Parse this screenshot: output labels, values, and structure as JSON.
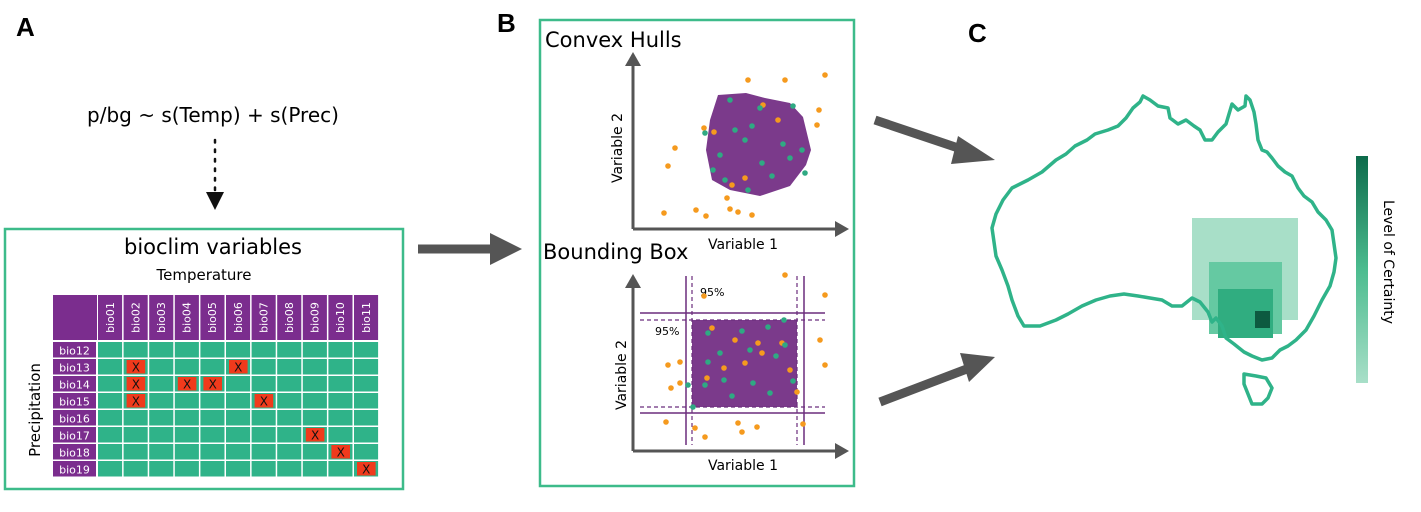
{
  "panels": {
    "a": {
      "letter": "A",
      "formula": "p/bg ~ s(Temp) + s(Prec)",
      "box_title": "bioclim variables",
      "col_axis_label": "Temperature",
      "row_axis_label": "Precipitation",
      "columns": [
        "bio01",
        "bio02",
        "bio03",
        "bio04",
        "bio05",
        "bio06",
        "bio07",
        "bio08",
        "bio09",
        "bio10",
        "bio11"
      ],
      "rows": [
        "bio12",
        "bio13",
        "bio14",
        "bio15",
        "bio16",
        "bio17",
        "bio18",
        "bio19"
      ],
      "excluded_cells": [
        [
          1,
          1
        ],
        [
          1,
          5
        ],
        [
          2,
          1
        ],
        [
          2,
          3
        ],
        [
          2,
          4
        ],
        [
          3,
          1
        ],
        [
          3,
          6
        ],
        [
          5,
          8
        ],
        [
          6,
          9
        ],
        [
          7,
          10
        ]
      ],
      "excluded_mark": "X",
      "colors": {
        "header": "#7b2d8e",
        "cell": "#2fb389",
        "excluded": "#f03a1c",
        "frame": "#3dbb8a"
      }
    },
    "b": {
      "letter": "B",
      "top_title": "Convex Hulls",
      "bottom_title": "Bounding Box",
      "xlabel": "Variable 1",
      "ylabel": "Variable 2",
      "percent_top": "95%",
      "percent_left": "95%",
      "colors": {
        "hull": "#7b3a8b",
        "presence": "#2fa983",
        "background": "#f59a1e"
      }
    },
    "c": {
      "letter": "C",
      "legend_label": "Level of Certainty",
      "colors": {
        "outline": "#2fb389",
        "low": "#a8dfc8",
        "mid": "#65c9a2",
        "high": "#30ad80",
        "top": "#0d5a40"
      }
    }
  }
}
